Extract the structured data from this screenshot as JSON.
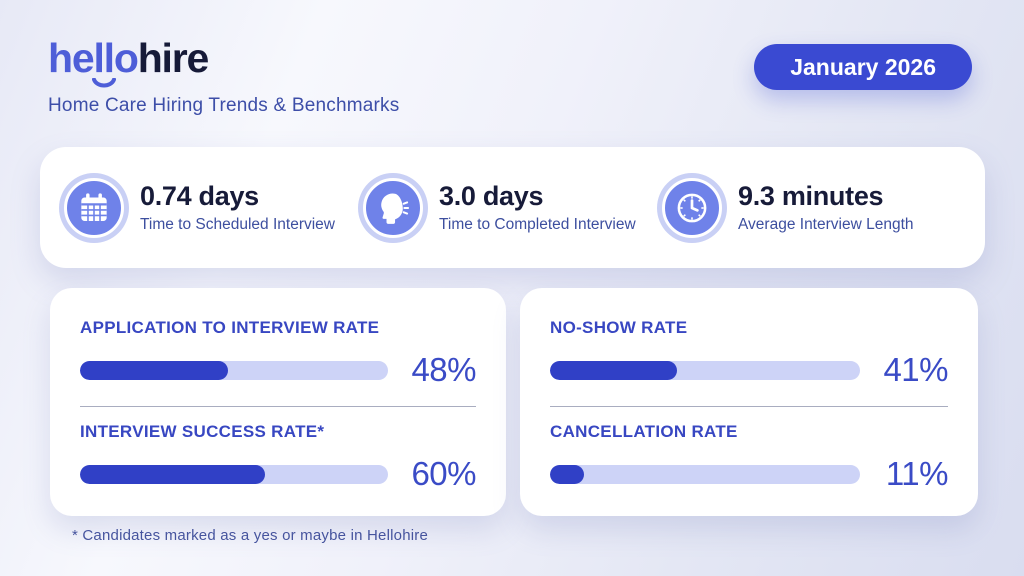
{
  "header": {
    "logo": {
      "seg_he": "he",
      "seg_ll": "ll",
      "seg_o": "o",
      "seg_hire": "hire"
    },
    "subtitle": "Home Care Hiring Trends & Benchmarks",
    "badge": "January 2026"
  },
  "stats": [
    {
      "icon": "calendar-icon",
      "value": "0.74 days",
      "label": "Time to Scheduled Interview"
    },
    {
      "icon": "speaking-head-icon",
      "value": "3.0 days",
      "label": "Time to Completed Interview"
    },
    {
      "icon": "clock-icon",
      "value": "9.3 minutes",
      "label": "Average Interview Length"
    }
  ],
  "metric_cards": [
    {
      "metrics": [
        {
          "label": "APPLICATION TO INTERVIEW RATE",
          "percent": 48,
          "display": "48%"
        },
        {
          "label": "INTERVIEW SUCCESS RATE*",
          "percent": 60,
          "display": "60%"
        }
      ]
    },
    {
      "metrics": [
        {
          "label": "NO-SHOW RATE",
          "percent": 41,
          "display": "41%"
        },
        {
          "label": "CANCELLATION RATE",
          "percent": 11,
          "display": "11%"
        }
      ]
    }
  ],
  "footnote": "* Candidates marked as a yes or maybe in Hellohire",
  "colors": {
    "logo_blue": "#4E5ED8",
    "logo_navy": "#161A38",
    "badge_bg": "#3A4AD2",
    "icon_circle": "#6F82E9",
    "bar_fill": "#3040C6",
    "bar_track": "#CDD3F7",
    "metric_title": "#3847C2",
    "percent_text": "#3A4BC6",
    "stat_value": "#171B39",
    "stat_label": "#3D4F9F"
  },
  "chart_data": {
    "type": "bar",
    "title": "Home Care Hiring Trends & Benchmarks — January 2026",
    "categories": [
      "Application to Interview Rate",
      "Interview Success Rate*",
      "No-Show Rate",
      "Cancellation Rate"
    ],
    "values": [
      48,
      60,
      41,
      11
    ],
    "unit": "%",
    "xlim": [
      0,
      100
    ],
    "xlabel": "",
    "ylabel": "",
    "annotations": [
      {
        "label": "Time to Scheduled Interview",
        "value": 0.74,
        "unit": "days"
      },
      {
        "label": "Time to Completed Interview",
        "value": 3.0,
        "unit": "days"
      },
      {
        "label": "Average Interview Length",
        "value": 9.3,
        "unit": "minutes"
      }
    ]
  }
}
